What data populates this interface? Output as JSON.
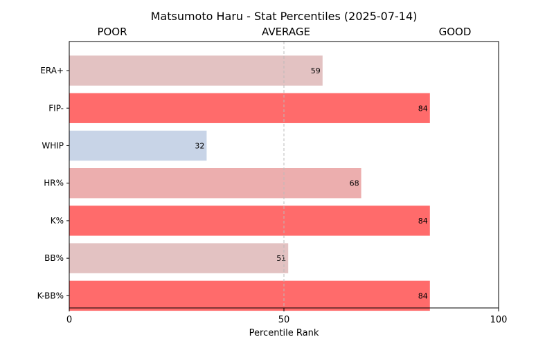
{
  "chart_data": {
    "type": "bar",
    "orientation": "horizontal",
    "title": "Matsumoto Haru - Stat Percentiles (2025-07-14)",
    "xlabel": "Percentile Rank",
    "ylabel": "",
    "xlim": [
      0,
      100
    ],
    "x_ticks": [
      "0",
      "50",
      "100"
    ],
    "band_labels": [
      "POOR",
      "AVERAGE",
      "GOOD"
    ],
    "reference_line": 50,
    "grid": false,
    "categories": [
      "ERA+",
      "FIP-",
      "WHIP",
      "HR%",
      "K%",
      "BB%",
      "K-BB%"
    ],
    "values": [
      59,
      84,
      32,
      68,
      84,
      51,
      84
    ],
    "colors": [
      "#e3c2c2",
      "#ff6b6b",
      "#c8d4e7",
      "#ecaeae",
      "#ff6b6b",
      "#e3c2c2",
      "#ff6b6b"
    ]
  }
}
